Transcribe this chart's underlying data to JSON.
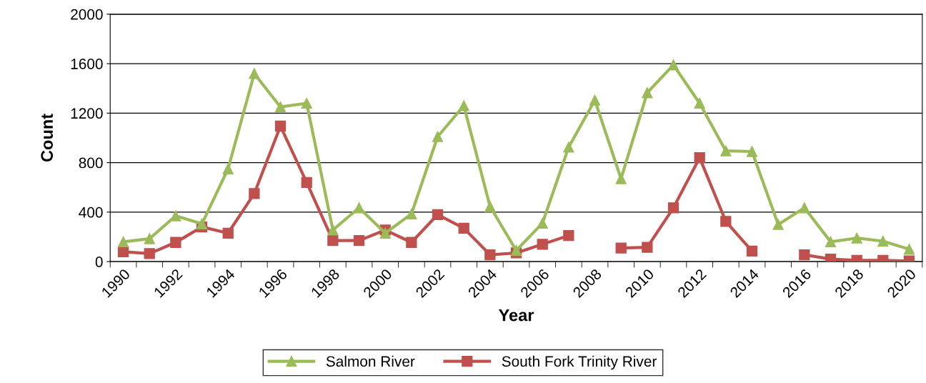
{
  "chart_data": {
    "type": "line",
    "xlabel": "Year",
    "ylabel": "Count",
    "categories": [
      "1990",
      null,
      "1992",
      null,
      "1994",
      null,
      "1996",
      null,
      "1998",
      null,
      "2000",
      null,
      "2002",
      null,
      "2004",
      null,
      "2006",
      null,
      "2008",
      null,
      "2010",
      null,
      "2012",
      null,
      "2014",
      null,
      "2016",
      null,
      "2018",
      null,
      "2020"
    ],
    "series": [
      {
        "name": "Salmon River",
        "color": "#9bbb59",
        "marker": "triangle",
        "values": [
          160,
          185,
          370,
          305,
          750,
          1520,
          1250,
          1280,
          255,
          435,
          230,
          385,
          1010,
          1260,
          445,
          90,
          310,
          925,
          1305,
          670,
          1365,
          1590,
          1280,
          895,
          890,
          300,
          435,
          160,
          190,
          165,
          100
        ]
      },
      {
        "name": "South Fork Trinity River",
        "color": "#c0504d",
        "marker": "square",
        "values": [
          80,
          65,
          155,
          280,
          230,
          550,
          1095,
          640,
          170,
          170,
          255,
          155,
          380,
          270,
          55,
          70,
          140,
          210,
          null,
          110,
          115,
          435,
          840,
          325,
          85,
          null,
          55,
          20,
          10,
          10,
          5
        ]
      }
    ],
    "ylim": [
      0,
      2000
    ],
    "yticks": [
      0,
      400,
      800,
      1200,
      1600,
      2000
    ],
    "grid": "y",
    "legend": "bottom",
    "line_style": "solid"
  }
}
